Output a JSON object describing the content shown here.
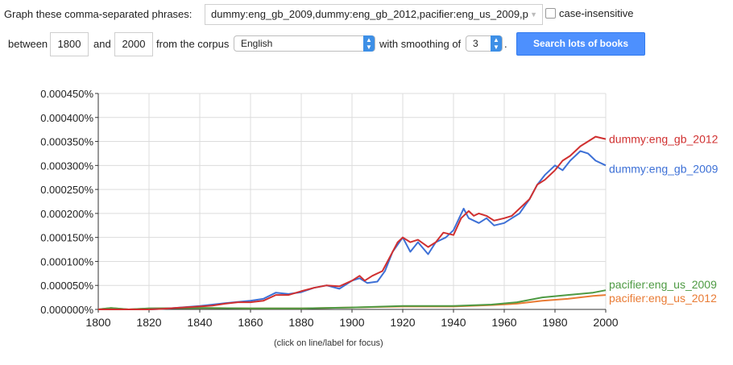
{
  "controls": {
    "phrases_label": "Graph these comma-separated phrases:",
    "phrases_value": "dummy:eng_gb_2009,dummy:eng_gb_2012,pacifier:eng_us_2009,p",
    "case_insensitive_label": "case-insensitive",
    "between_label": "between",
    "start_year": "1800",
    "and_label": "and",
    "end_year": "2000",
    "corpus_label": "from the corpus",
    "corpus_value": "English",
    "smoothing_label": "with smoothing of",
    "smoothing_value": "3",
    "period": ".",
    "search_button": "Search lots of books"
  },
  "chart_footer": "(click on line/label for focus)",
  "chart_data": {
    "type": "line",
    "xlim": [
      1800,
      2000
    ],
    "ylim": [
      0,
      0.0045
    ],
    "x_ticks": [
      "1800",
      "1820",
      "1840",
      "1860",
      "1880",
      "1900",
      "1920",
      "1940",
      "1960",
      "1980",
      "2000"
    ],
    "y_ticks": [
      "0.000000%",
      "0.000050%",
      "0.000100%",
      "0.000150%",
      "0.000200%",
      "0.000250%",
      "0.000300%",
      "0.000350%",
      "0.000400%",
      "0.000450%"
    ],
    "grid": true,
    "legend": "right, at end of lines",
    "series": [
      {
        "name": "dummy:eng_gb_2012",
        "color": "#d03030",
        "points": [
          [
            1800,
            0
          ],
          [
            1820,
            0
          ],
          [
            1825,
            1e-05
          ],
          [
            1830,
            3e-05
          ],
          [
            1840,
            6e-05
          ],
          [
            1845,
            8e-05
          ],
          [
            1850,
            0.00012
          ],
          [
            1855,
            0.00015
          ],
          [
            1860,
            0.00015
          ],
          [
            1865,
            0.00018
          ],
          [
            1870,
            0.0003
          ],
          [
            1875,
            0.0003
          ],
          [
            1880,
            0.00038
          ],
          [
            1885,
            0.00045
          ],
          [
            1890,
            0.0005
          ],
          [
            1895,
            0.00048
          ],
          [
            1900,
            0.0006
          ],
          [
            1903,
            0.0007
          ],
          [
            1905,
            0.0006
          ],
          [
            1908,
            0.0007
          ],
          [
            1912,
            0.0008
          ],
          [
            1915,
            0.0011
          ],
          [
            1918,
            0.0014
          ],
          [
            1920,
            0.0015
          ],
          [
            1923,
            0.0014
          ],
          [
            1926,
            0.00145
          ],
          [
            1930,
            0.0013
          ],
          [
            1933,
            0.0014
          ],
          [
            1936,
            0.0016
          ],
          [
            1940,
            0.00155
          ],
          [
            1943,
            0.0019
          ],
          [
            1946,
            0.00205
          ],
          [
            1948,
            0.00195
          ],
          [
            1950,
            0.002
          ],
          [
            1953,
            0.00195
          ],
          [
            1956,
            0.00185
          ],
          [
            1960,
            0.0019
          ],
          [
            1963,
            0.00195
          ],
          [
            1966,
            0.0021
          ],
          [
            1970,
            0.0023
          ],
          [
            1973,
            0.0026
          ],
          [
            1976,
            0.0027
          ],
          [
            1980,
            0.0029
          ],
          [
            1983,
            0.0031
          ],
          [
            1986,
            0.0032
          ],
          [
            1990,
            0.0034
          ],
          [
            1993,
            0.0035
          ],
          [
            1996,
            0.0036
          ],
          [
            2000,
            0.00355
          ]
        ]
      },
      {
        "name": "dummy:eng_gb_2009",
        "color": "#3d70d6",
        "points": [
          [
            1800,
            0
          ],
          [
            1820,
            0
          ],
          [
            1825,
            1e-05
          ],
          [
            1830,
            3e-05
          ],
          [
            1840,
            7e-05
          ],
          [
            1850,
            0.00013
          ],
          [
            1860,
            0.00018
          ],
          [
            1865,
            0.00022
          ],
          [
            1870,
            0.00035
          ],
          [
            1875,
            0.00032
          ],
          [
            1880,
            0.00036
          ],
          [
            1885,
            0.00045
          ],
          [
            1890,
            0.0005
          ],
          [
            1895,
            0.00043
          ],
          [
            1900,
            0.0006
          ],
          [
            1903,
            0.00065
          ],
          [
            1906,
            0.00055
          ],
          [
            1910,
            0.00058
          ],
          [
            1913,
            0.0008
          ],
          [
            1916,
            0.0012
          ],
          [
            1920,
            0.0015
          ],
          [
            1923,
            0.0012
          ],
          [
            1926,
            0.0014
          ],
          [
            1930,
            0.00115
          ],
          [
            1933,
            0.0014
          ],
          [
            1937,
            0.0015
          ],
          [
            1940,
            0.00165
          ],
          [
            1944,
            0.0021
          ],
          [
            1946,
            0.0019
          ],
          [
            1950,
            0.0018
          ],
          [
            1953,
            0.0019
          ],
          [
            1956,
            0.00175
          ],
          [
            1960,
            0.0018
          ],
          [
            1963,
            0.0019
          ],
          [
            1966,
            0.002
          ],
          [
            1970,
            0.0023
          ],
          [
            1973,
            0.0026
          ],
          [
            1976,
            0.0028
          ],
          [
            1980,
            0.003
          ],
          [
            1983,
            0.0029
          ],
          [
            1986,
            0.0031
          ],
          [
            1990,
            0.0033
          ],
          [
            1993,
            0.00325
          ],
          [
            1996,
            0.0031
          ],
          [
            2000,
            0.003
          ]
        ]
      },
      {
        "name": "pacifier:eng_us_2009",
        "color": "#4e9a43",
        "points": [
          [
            1800,
            0
          ],
          [
            1805,
            3e-05
          ],
          [
            1812,
            0
          ],
          [
            1820,
            2e-05
          ],
          [
            1840,
            3e-05
          ],
          [
            1860,
            2e-05
          ],
          [
            1880,
            2e-05
          ],
          [
            1900,
            4e-05
          ],
          [
            1920,
            7e-05
          ],
          [
            1940,
            7e-05
          ],
          [
            1955,
            0.0001
          ],
          [
            1965,
            0.00015
          ],
          [
            1975,
            0.00025
          ],
          [
            1985,
            0.0003
          ],
          [
            1995,
            0.00035
          ],
          [
            2000,
            0.0004
          ]
        ]
      },
      {
        "name": "pacifier:eng_us_2012",
        "color": "#e97b34",
        "points": [
          [
            1800,
            0
          ],
          [
            1805,
            3e-05
          ],
          [
            1812,
            0
          ],
          [
            1820,
            2e-05
          ],
          [
            1840,
            3e-05
          ],
          [
            1860,
            2e-05
          ],
          [
            1880,
            2e-05
          ],
          [
            1900,
            4e-05
          ],
          [
            1920,
            6e-05
          ],
          [
            1940,
            6e-05
          ],
          [
            1955,
            9e-05
          ],
          [
            1965,
            0.00012
          ],
          [
            1975,
            0.00018
          ],
          [
            1985,
            0.00022
          ],
          [
            1995,
            0.00028
          ],
          [
            2000,
            0.0003
          ]
        ]
      }
    ]
  }
}
